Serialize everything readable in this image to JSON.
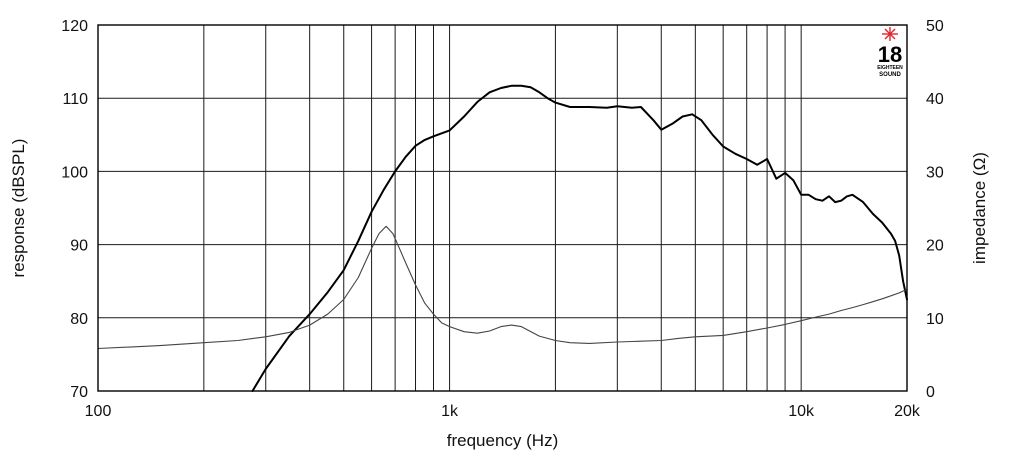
{
  "logo": {
    "brand_number": "18",
    "brand_line1": "EIGHTEEN",
    "brand_line2": "SOUND",
    "accent_color": "#e0262f"
  },
  "chart_data": {
    "type": "line",
    "title": "",
    "xlabel": "frequency (Hz)",
    "ylabel": "response (dBSPL)",
    "y2label": "impedance (Ω)",
    "xscale": "log",
    "xlim": [
      100,
      20000
    ],
    "ylim": [
      70,
      120
    ],
    "y2lim": [
      0,
      50
    ],
    "x_ticks": [
      {
        "value": 100,
        "label": "100"
      },
      {
        "value": 1000,
        "label": "1k"
      },
      {
        "value": 10000,
        "label": "10k"
      },
      {
        "value": 20000,
        "label": "20k"
      }
    ],
    "y_ticks": [
      {
        "value": 70,
        "label": "70"
      },
      {
        "value": 80,
        "label": "80"
      },
      {
        "value": 90,
        "label": "90"
      },
      {
        "value": 100,
        "label": "100"
      },
      {
        "value": 110,
        "label": "110"
      },
      {
        "value": 120,
        "label": "120"
      }
    ],
    "y2_ticks": [
      {
        "value": 0,
        "label": "0"
      },
      {
        "value": 10,
        "label": "10"
      },
      {
        "value": 20,
        "label": "20"
      },
      {
        "value": 30,
        "label": "30"
      },
      {
        "value": 40,
        "label": "40"
      },
      {
        "value": 50,
        "label": "50"
      }
    ],
    "grid": true,
    "legend": "none",
    "series": [
      {
        "axis": "left",
        "color": "#000000",
        "x": [
          275,
          300,
          350,
          400,
          450,
          500,
          550,
          600,
          650,
          700,
          750,
          800,
          850,
          900,
          1000,
          1100,
          1200,
          1300,
          1400,
          1500,
          1600,
          1700,
          1800,
          1900,
          2000,
          2200,
          2500,
          2800,
          3000,
          3300,
          3500,
          3800,
          4000,
          4300,
          4600,
          4900,
          5200,
          5600,
          6000,
          6500,
          7000,
          7500,
          8000,
          8500,
          9000,
          9500,
          10000,
          10500,
          11000,
          11500,
          12000,
          12500,
          13000,
          13500,
          14000,
          15000,
          16000,
          17000,
          18000,
          18500,
          19000,
          19500,
          20000
        ],
        "y": [
          70,
          73,
          77.5,
          80.5,
          83.5,
          86.5,
          90.5,
          94.5,
          97.5,
          100,
          102,
          103.5,
          104.3,
          104.8,
          105.6,
          107.5,
          109.5,
          110.8,
          111.4,
          111.7,
          111.7,
          111.5,
          110.8,
          110,
          109.4,
          108.8,
          108.8,
          108.7,
          108.9,
          108.7,
          108.8,
          107,
          105.7,
          106.5,
          107.5,
          107.8,
          107,
          105,
          103.4,
          102.4,
          101.7,
          100.9,
          101.7,
          99,
          99.8,
          98.8,
          96.8,
          96.8,
          96.2,
          96.0,
          96.6,
          95.8,
          96.0,
          96.6,
          96.8,
          95.8,
          94.2,
          93.0,
          91.5,
          90.5,
          88.5,
          85.0,
          82.5
        ]
      },
      {
        "axis": "right",
        "color": "#444444",
        "x": [
          100,
          150,
          200,
          250,
          300,
          350,
          400,
          450,
          500,
          550,
          600,
          630,
          660,
          690,
          720,
          750,
          800,
          850,
          900,
          950,
          1000,
          1100,
          1200,
          1300,
          1400,
          1500,
          1600,
          1800,
          2000,
          2200,
          2500,
          3000,
          3500,
          4000,
          4500,
          5000,
          6000,
          7000,
          8000,
          9000,
          10000,
          11000,
          12000,
          13000,
          14000,
          15000,
          16000,
          17000,
          18000,
          19000,
          20000
        ],
        "y": [
          5.8,
          6.2,
          6.6,
          6.9,
          7.4,
          8.0,
          9.0,
          10.5,
          12.5,
          15.5,
          19.5,
          21.5,
          22.5,
          21.5,
          19.5,
          17.5,
          14.5,
          12.0,
          10.5,
          9.3,
          8.8,
          8.1,
          7.9,
          8.2,
          8.8,
          9.0,
          8.8,
          7.5,
          6.9,
          6.6,
          6.5,
          6.7,
          6.8,
          6.9,
          7.2,
          7.4,
          7.6,
          8.1,
          8.6,
          9.1,
          9.6,
          10.1,
          10.5,
          11.0,
          11.4,
          11.8,
          12.2,
          12.6,
          13.0,
          13.4,
          13.9
        ]
      }
    ]
  }
}
